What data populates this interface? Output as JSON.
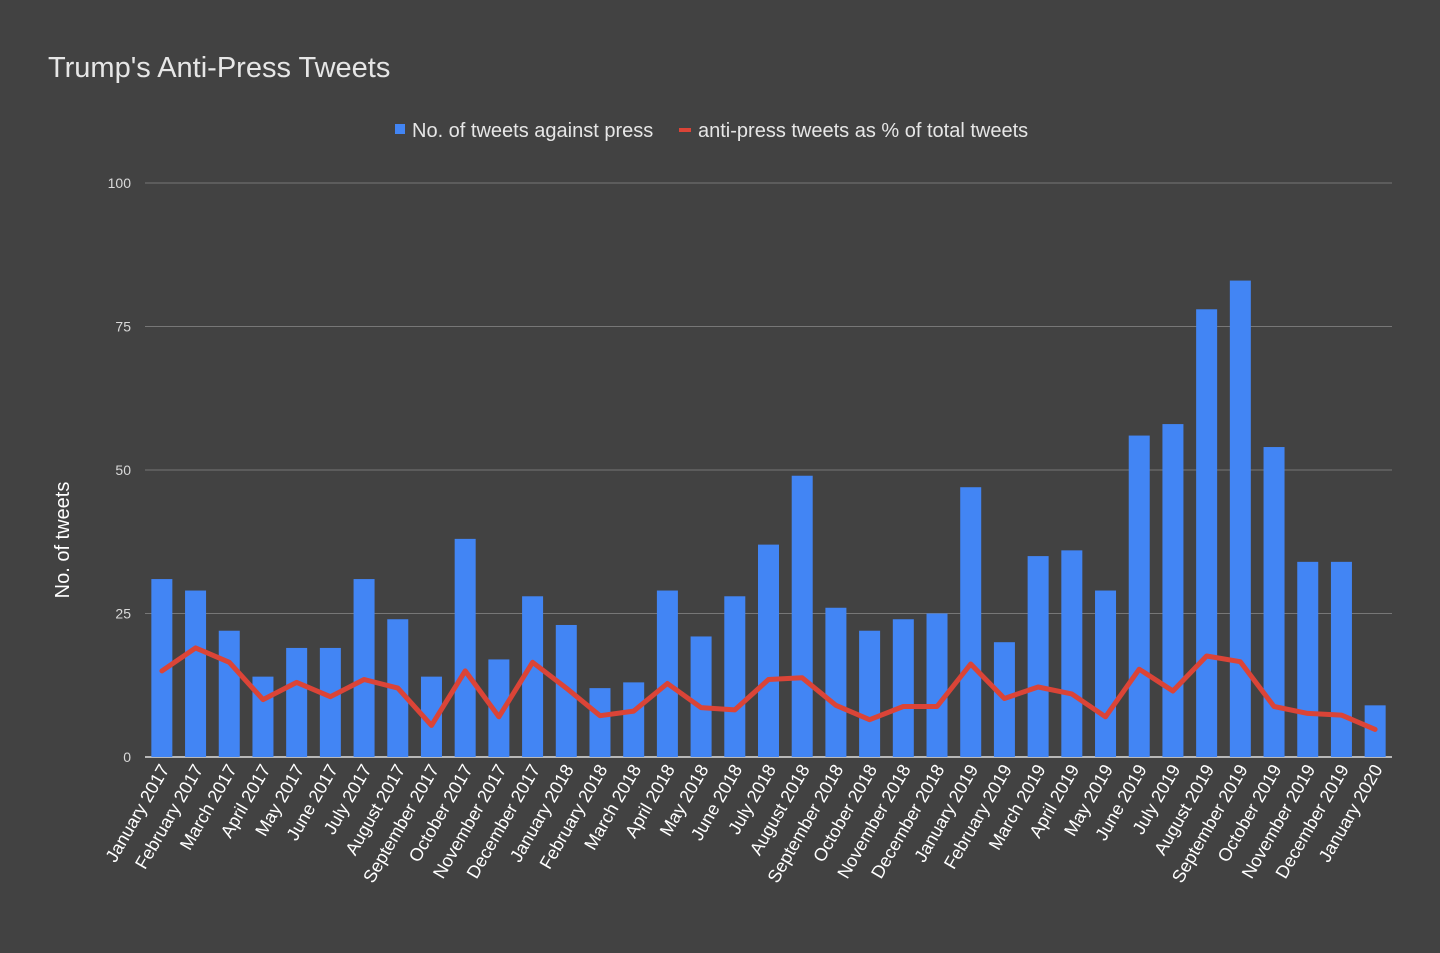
{
  "chart_data": {
    "type": "bar+line",
    "title": "Trump's Anti-Press Tweets",
    "ylabel": "No. of tweets",
    "xlabel": "",
    "ylim": [
      0,
      100
    ],
    "yticks": [
      0,
      25,
      50,
      75,
      100
    ],
    "grid": true,
    "legend_position": "top",
    "categories": [
      "January 2017",
      "February 2017",
      "March 2017",
      "April 2017",
      "May 2017",
      "June 2017",
      "July 2017",
      "August 2017",
      "September 2017",
      "October 2017",
      "November 2017",
      "December 2017",
      "January 2018",
      "February 2018",
      "March 2018",
      "April 2018",
      "May 2018",
      "June 2018",
      "July 2018",
      "August 2018",
      "September 2018",
      "October 2018",
      "November 2018",
      "December 2018",
      "January 2019",
      "February 2019",
      "March 2019",
      "April 2019",
      "May 2019",
      "June 2019",
      "July 2019",
      "August 2019",
      "September 2019",
      "October 2019",
      "November 2019",
      "December 2019",
      "January 2020"
    ],
    "series": [
      {
        "name": "No. of tweets against press",
        "type": "bar",
        "color": "#4285f4",
        "values": [
          31,
          29,
          22,
          14,
          19,
          19,
          31,
          24,
          14,
          38,
          17,
          28,
          23,
          12,
          13,
          29,
          21,
          28,
          37,
          49,
          26,
          22,
          24,
          25,
          47,
          20,
          35,
          36,
          29,
          56,
          58,
          78,
          83,
          54,
          34,
          34,
          9
        ]
      },
      {
        "name": "anti-press tweets as % of total tweets",
        "type": "line",
        "color": "#db4437",
        "values": [
          15,
          19,
          16.5,
          10,
          13,
          10.5,
          13.5,
          12,
          5.5,
          15,
          7,
          16.5,
          12,
          7.2,
          8,
          12.8,
          8.6,
          8.2,
          13.5,
          13.8,
          9,
          6.5,
          8.8,
          8.8,
          16.2,
          10.2,
          12.2,
          11,
          7,
          15.3,
          11.5,
          17.6,
          16.6,
          8.8,
          7.6,
          7.3,
          4.8
        ]
      }
    ]
  }
}
